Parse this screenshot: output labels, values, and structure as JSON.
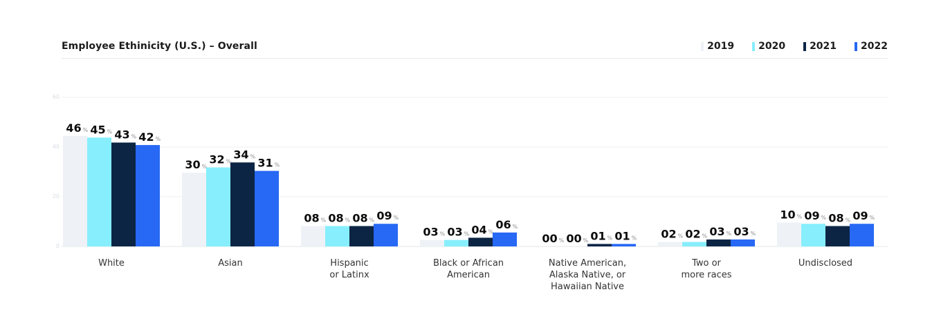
{
  "chart_data": {
    "type": "bar",
    "title": "Employee Ethinicity (U.S.) – Overall",
    "categories": [
      [
        "White"
      ],
      [
        "Asian"
      ],
      [
        "Hispanic",
        "or Latinx"
      ],
      [
        "Black or African",
        "American"
      ],
      [
        "Native American,",
        "Alaska Native, or",
        "Hawaiian Native"
      ],
      [
        "Two or",
        "more races"
      ],
      [
        "Undisclosed"
      ]
    ],
    "series": [
      {
        "name": "2019",
        "color": "#eef2f7",
        "values": [
          46,
          30,
          8,
          3,
          0,
          2,
          10
        ]
      },
      {
        "name": "2020",
        "color": "#86eefc",
        "values": [
          45,
          32,
          8,
          3,
          0,
          2,
          9
        ]
      },
      {
        "name": "2021",
        "color": "#0c2545",
        "values": [
          43,
          34,
          8,
          4,
          1,
          3,
          8
        ]
      },
      {
        "name": "2022",
        "color": "#2768f4",
        "values": [
          42,
          31,
          9,
          6,
          1,
          3,
          9
        ]
      }
    ],
    "value_labels": [
      [
        "46",
        "45",
        "43",
        "42"
      ],
      [
        "30",
        "32",
        "34",
        "31"
      ],
      [
        "08",
        "08",
        "08",
        "09"
      ],
      [
        "03",
        "03",
        "04",
        "06"
      ],
      [
        "00",
        "00",
        "01",
        "01"
      ],
      [
        "02",
        "02",
        "03",
        "03"
      ],
      [
        "10",
        "09",
        "08",
        "09"
      ]
    ],
    "bar_heights": [
      [
        44.5,
        43.8,
        41.8,
        40.8
      ],
      [
        29.7,
        31.8,
        33.8,
        30.4
      ],
      [
        8.2,
        8.2,
        8.2,
        9.1
      ],
      [
        2.6,
        2.6,
        3.5,
        5.6
      ],
      [
        0.0,
        0.0,
        1.0,
        1.0
      ],
      [
        1.8,
        1.8,
        2.8,
        2.8
      ],
      [
        9.6,
        9.1,
        8.2,
        9.1
      ]
    ],
    "value_suffix": "%",
    "yticks": [
      "0",
      "20",
      "40",
      "60"
    ],
    "ylim": [
      0,
      60
    ],
    "grid": true,
    "legend_position": "top-right"
  }
}
